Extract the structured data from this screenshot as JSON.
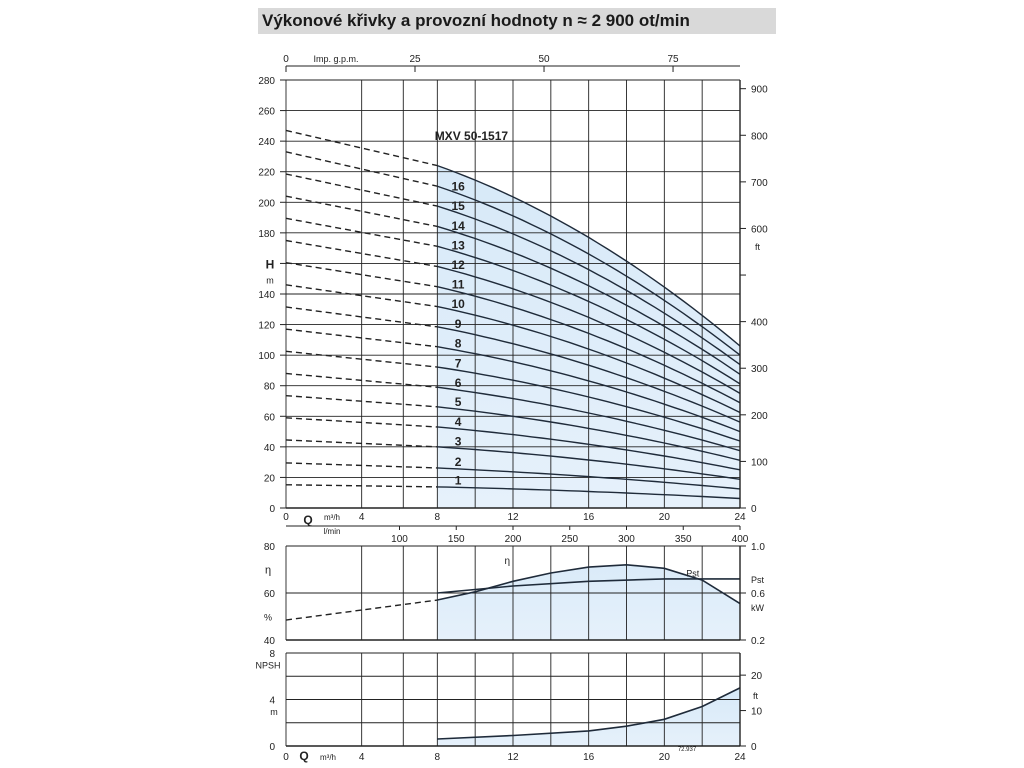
{
  "title": "Výkonové křivky a provozní hodnoty n ≈ 2 900 ot/min",
  "chart_data": [
    {
      "type": "line",
      "name": "head-curves",
      "model_label": "MXV 50-1517",
      "x_unit_label": "m³/h",
      "x_unit_label_lmin": "l/min",
      "x_symbol": "Q",
      "y_symbol": "H",
      "y_unit": "m",
      "y2_unit": "ft",
      "top_axis_label": "Imp. g.p.m.",
      "xlim": [
        0,
        24
      ],
      "ylim": [
        0,
        280
      ],
      "x_ticks": [
        0,
        4,
        8,
        12,
        16,
        20,
        24
      ],
      "y_ticks": [
        0,
        20,
        40,
        60,
        80,
        100,
        120,
        140,
        160,
        180,
        200,
        220,
        240,
        260,
        280
      ],
      "y_ticks_shown": [
        "0",
        "20",
        "40",
        "60",
        "80",
        "100",
        "120",
        "140",
        "",
        "180",
        "200",
        "220",
        "240",
        "260",
        "280"
      ],
      "ft_ticks": [
        0,
        100,
        200,
        300,
        400,
        500,
        600,
        700,
        800,
        900
      ],
      "ft_ticks_shown": [
        "0",
        "100",
        "200",
        "300",
        "400",
        "",
        "600",
        "700",
        "800",
        "900"
      ],
      "gpm_ticks": [
        0,
        25,
        50,
        75
      ],
      "lmin_ticks": [
        150,
        200,
        250,
        300,
        350,
        400
      ],
      "lmin_ticks_left": [
        100
      ],
      "operating_range": [
        8,
        24
      ],
      "series": [
        {
          "name": "1",
          "head_at_0": 15.2,
          "head_at_8": 13.8,
          "head_at_24": 6.2
        },
        {
          "name": "2",
          "head_at_0": 29.5,
          "head_at_8": 26.2,
          "head_at_24": 12.5
        },
        {
          "name": "3",
          "head_at_0": 44.5,
          "head_at_8": 40.0,
          "head_at_24": 18.8
        },
        {
          "name": "4",
          "head_at_0": 59.0,
          "head_at_8": 53.0,
          "head_at_24": 25.0
        },
        {
          "name": "5",
          "head_at_0": 73.5,
          "head_at_8": 66.2,
          "head_at_24": 31.2
        },
        {
          "name": "6",
          "head_at_0": 88.0,
          "head_at_8": 79.0,
          "head_at_24": 37.5
        },
        {
          "name": "7",
          "head_at_0": 102.5,
          "head_at_8": 92.2,
          "head_at_24": 43.8
        },
        {
          "name": "8",
          "head_at_0": 117.0,
          "head_at_8": 105.5,
          "head_at_24": 50.0
        },
        {
          "name": "9",
          "head_at_0": 131.5,
          "head_at_8": 118.5,
          "head_at_24": 56.2
        },
        {
          "name": "10",
          "head_at_0": 146.0,
          "head_at_8": 131.8,
          "head_at_24": 62.5
        },
        {
          "name": "11",
          "head_at_0": 160.5,
          "head_at_8": 144.8,
          "head_at_24": 68.8
        },
        {
          "name": "12",
          "head_at_0": 175.0,
          "head_at_8": 158.0,
          "head_at_24": 75.0
        },
        {
          "name": "13",
          "head_at_0": 189.5,
          "head_at_8": 171.2,
          "head_at_24": 81.2
        },
        {
          "name": "14",
          "head_at_0": 204.0,
          "head_at_8": 184.2,
          "head_at_24": 87.5
        },
        {
          "name": "15",
          "head_at_0": 218.5,
          "head_at_8": 197.5,
          "head_at_24": 93.8
        },
        {
          "name": "16",
          "head_at_0": 233.0,
          "head_at_8": 210.5,
          "head_at_24": 100.0
        },
        {
          "name": "MXV",
          "head_at_0": 247.0,
          "head_at_8": 224.0,
          "head_at_24": 106.0
        }
      ]
    },
    {
      "type": "line",
      "name": "efficiency-power",
      "y_symbol": "η",
      "y_unit": "%",
      "y2_unit": "kW",
      "y2_label": "Pst",
      "eta_label": "η",
      "pst_label": "Pst",
      "xlim": [
        0,
        24
      ],
      "ylim": [
        40,
        80
      ],
      "y_ticks": [
        40,
        60,
        80
      ],
      "y2lim": [
        0.2,
        1.0
      ],
      "y2_ticks": [
        "0.2",
        "0.6",
        "1.0"
      ],
      "eta_points": [
        [
          0,
          48.5
        ],
        [
          8,
          57.0
        ],
        [
          10,
          60.5
        ],
        [
          12,
          65.0
        ],
        [
          14,
          68.5
        ],
        [
          16,
          71.0
        ],
        [
          18,
          72.0
        ],
        [
          20,
          70.5
        ],
        [
          22,
          65.5
        ],
        [
          24,
          55.5
        ]
      ],
      "power_points_kw": [
        [
          0,
          0.39
        ],
        [
          8,
          0.6
        ],
        [
          12,
          0.66
        ],
        [
          16,
          0.7
        ],
        [
          20,
          0.72
        ],
        [
          24,
          0.72
        ]
      ]
    },
    {
      "type": "line",
      "name": "npsh",
      "y_symbol": "NPSH",
      "y_unit": "m",
      "y2_unit": "ft",
      "x_symbol": "Q",
      "x_unit_label": "m³/h",
      "xlim": [
        0,
        24
      ],
      "ylim": [
        0,
        8
      ],
      "y_ticks": [
        0,
        2,
        4,
        6,
        8
      ],
      "y_ticks_shown": [
        "0",
        "",
        "4",
        "",
        "8"
      ],
      "x_ticks": [
        0,
        4,
        8,
        12,
        16,
        20,
        24
      ],
      "ft_ticks": [
        0,
        10,
        20
      ],
      "code": "72.937",
      "points": [
        [
          8,
          0.6
        ],
        [
          12,
          0.9
        ],
        [
          16,
          1.3
        ],
        [
          18,
          1.7
        ],
        [
          20,
          2.3
        ],
        [
          22,
          3.4
        ],
        [
          24,
          5.0
        ]
      ]
    }
  ]
}
